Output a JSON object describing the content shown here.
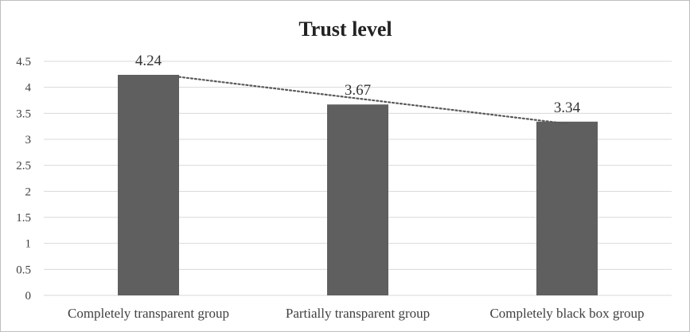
{
  "chart_data": {
    "type": "bar",
    "title": "Trust level",
    "categories": [
      "Completely transparent group",
      "Partially transparent group",
      "Completely black box group"
    ],
    "values": [
      4.24,
      3.67,
      3.34
    ],
    "data_labels": [
      "4.24",
      "3.67",
      "3.34"
    ],
    "ylim": [
      0,
      4.5
    ],
    "yticks": [
      "0",
      "0.5",
      "1",
      "1.5",
      "2",
      "2.5",
      "3",
      "3.5",
      "4",
      "4.5"
    ],
    "xlabel": "",
    "ylabel": "",
    "grid": true,
    "trendline": "linear, dotted",
    "colors": {
      "bar": "#5f5f5f",
      "grid": "#d9d9d9",
      "trendline": "#5a5a5a"
    }
  }
}
